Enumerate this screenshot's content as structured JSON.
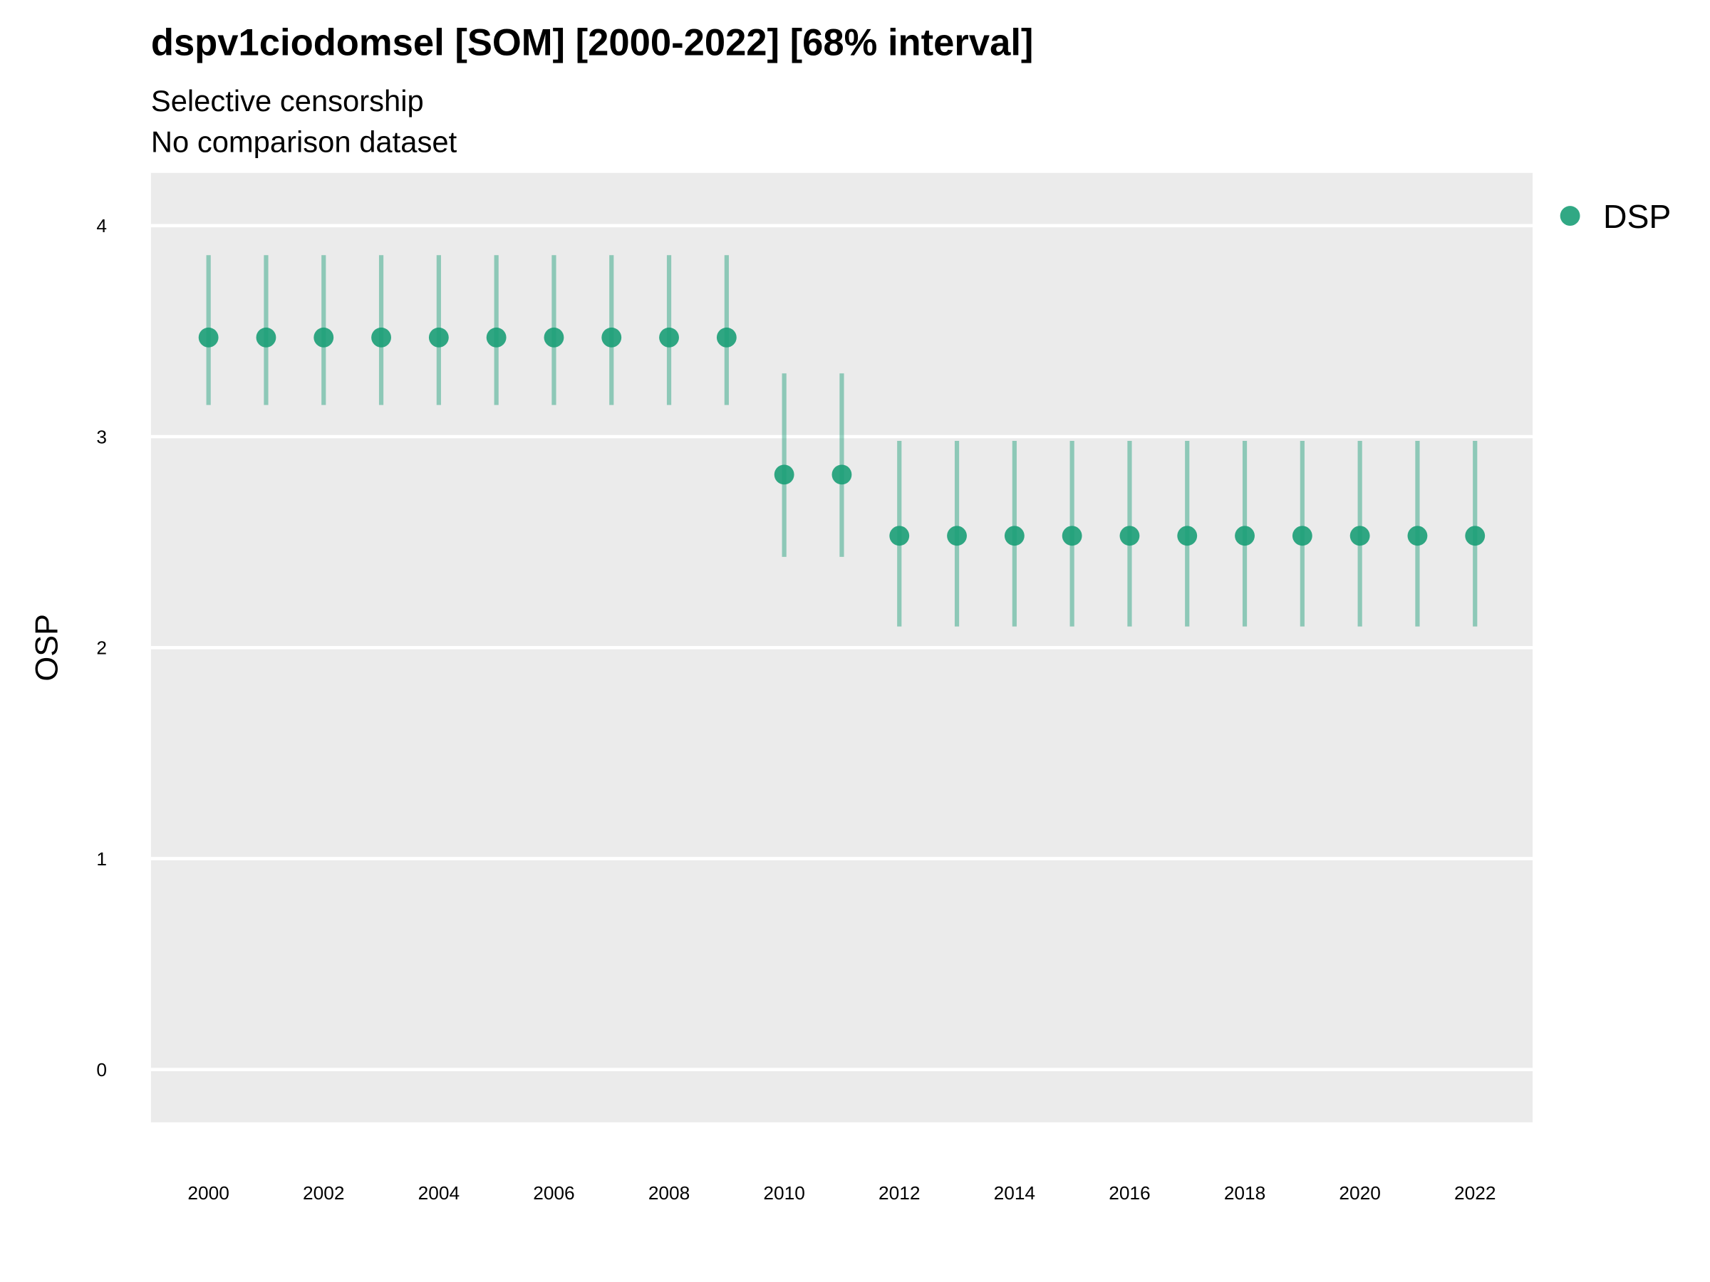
{
  "chart_data": {
    "type": "pointrange",
    "title": "dspv1ciodomsel [SOM] [2000-2022] [68% interval]",
    "subtitle": [
      "Selective censorship",
      "No comparison dataset"
    ],
    "y_label": "OSP",
    "x": [
      2000,
      2001,
      2002,
      2003,
      2004,
      2005,
      2006,
      2007,
      2008,
      2009,
      2010,
      2011,
      2012,
      2013,
      2014,
      2015,
      2016,
      2017,
      2018,
      2019,
      2020,
      2021,
      2022
    ],
    "series": [
      {
        "name": "DSP",
        "color": "#1b9e77",
        "values": [
          3.47,
          3.47,
          3.47,
          3.47,
          3.47,
          3.47,
          3.47,
          3.47,
          3.47,
          3.47,
          2.82,
          2.82,
          2.53,
          2.53,
          2.53,
          2.53,
          2.53,
          2.53,
          2.53,
          2.53,
          2.53,
          2.53,
          2.53
        ],
        "lower": [
          3.15,
          3.15,
          3.15,
          3.15,
          3.15,
          3.15,
          3.15,
          3.15,
          3.15,
          3.15,
          2.43,
          2.43,
          2.1,
          2.1,
          2.1,
          2.1,
          2.1,
          2.1,
          2.1,
          2.1,
          2.1,
          2.1,
          2.1
        ],
        "upper": [
          3.86,
          3.86,
          3.86,
          3.86,
          3.86,
          3.86,
          3.86,
          3.86,
          3.86,
          3.86,
          3.3,
          3.3,
          2.98,
          2.98,
          2.98,
          2.98,
          2.98,
          2.98,
          2.98,
          2.98,
          2.98,
          2.98,
          2.98
        ]
      }
    ],
    "xlim": [
      1999,
      2023
    ],
    "xticks": [
      2000,
      2002,
      2004,
      2006,
      2008,
      2010,
      2012,
      2014,
      2016,
      2018,
      2020,
      2022
    ],
    "ylim": [
      -0.25,
      4.25
    ],
    "yticks": [
      0,
      1,
      2,
      3,
      4
    ],
    "grid": true,
    "legend": "right"
  }
}
